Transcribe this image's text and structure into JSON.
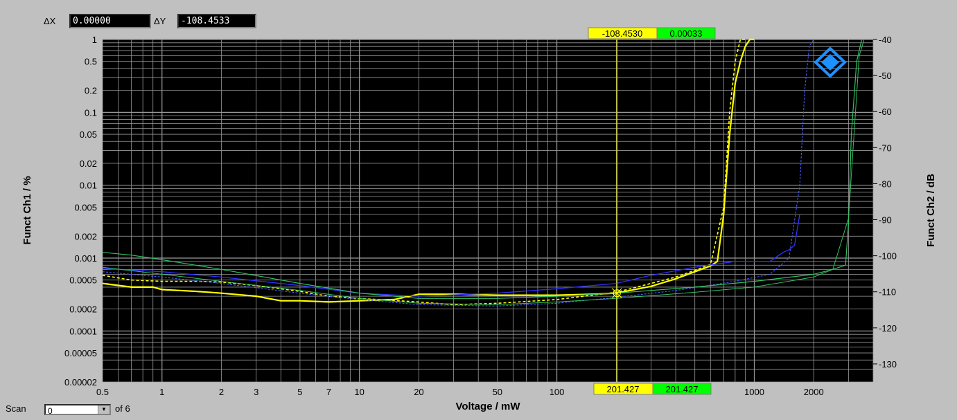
{
  "readouts": {
    "dx_label": "ΔX",
    "dx_value": "0.00000",
    "dy_label": "ΔY",
    "dy_value": "-108.4533"
  },
  "scan": {
    "label": "Scan",
    "value": "0",
    "of_label": "of 6"
  },
  "colors": {
    "background": "#c0c0c0",
    "plot_bg": "#000000",
    "grid": "#9a9a9a",
    "cursor": "#ffff00",
    "cursor_label_yellow": "#ffff00",
    "cursor_label_green": "#00ff00",
    "logo": "#1e90ff"
  },
  "cursor_labels": {
    "top_yellow": "-108.4530",
    "top_green": "0.00033",
    "bottom_yellow": "201.427",
    "bottom_green": "201.427"
  },
  "chart_data": {
    "type": "line",
    "xlabel": "Voltage / mW",
    "ylabel_left": "Funct Ch1 / %",
    "ylabel_right": "Funct Ch2 / dB",
    "x_scale": "log",
    "xlim": [
      0.5,
      4000
    ],
    "y_left_scale": "log",
    "y_left_lim": [
      2e-05,
      1
    ],
    "y_right_lim": [
      -135,
      -40
    ],
    "x_ticks": [
      {
        "v": 0.5,
        "label": "0.5"
      },
      {
        "v": 1,
        "label": "1"
      },
      {
        "v": 2,
        "label": "2"
      },
      {
        "v": 3,
        "label": "3"
      },
      {
        "v": 5,
        "label": "5"
      },
      {
        "v": 7,
        "label": "7"
      },
      {
        "v": 10,
        "label": "10"
      },
      {
        "v": 20,
        "label": "20"
      },
      {
        "v": 50,
        "label": "50"
      },
      {
        "v": 100,
        "label": "100"
      },
      {
        "v": 1000,
        "label": "1000"
      },
      {
        "v": 2000,
        "label": "2000"
      }
    ],
    "y_left_ticks": [
      {
        "v": 1,
        "label": "1"
      },
      {
        "v": 0.5,
        "label": "0.5"
      },
      {
        "v": 0.2,
        "label": "0.2"
      },
      {
        "v": 0.1,
        "label": "0.1"
      },
      {
        "v": 0.05,
        "label": "0.05"
      },
      {
        "v": 0.02,
        "label": "0.02"
      },
      {
        "v": 0.01,
        "label": "0.01"
      },
      {
        "v": 0.005,
        "label": "0.005"
      },
      {
        "v": 0.002,
        "label": "0.002"
      },
      {
        "v": 0.001,
        "label": "0.001"
      },
      {
        "v": 0.0005,
        "label": "0.0005"
      },
      {
        "v": 0.0002,
        "label": "0.0002"
      },
      {
        "v": 0.0001,
        "label": "0.0001"
      },
      {
        "v": 5e-05,
        "label": "0.00005"
      },
      {
        "v": 2e-05,
        "label": "0.00002"
      }
    ],
    "y_right_ticks": [
      {
        "v": -40,
        "label": "-40"
      },
      {
        "v": -50,
        "label": "-50"
      },
      {
        "v": -60,
        "label": "-60"
      },
      {
        "v": -70,
        "label": "-70"
      },
      {
        "v": -80,
        "label": "-80"
      },
      {
        "v": -90,
        "label": "-90"
      },
      {
        "v": -100,
        "label": "-100"
      },
      {
        "v": -110,
        "label": "-110"
      },
      {
        "v": -120,
        "label": "-120"
      },
      {
        "v": -130,
        "label": "-130"
      }
    ],
    "cursor_x": 201.427,
    "cursor_y": 0.00033,
    "series": [
      {
        "color": "#ffff00",
        "width": 2.2,
        "dash": "",
        "x": [
          0.5,
          0.7,
          0.9,
          1.0,
          1.5,
          2,
          3,
          4,
          5,
          7,
          10,
          15,
          20,
          30,
          50,
          70,
          100,
          150,
          200,
          300,
          400,
          500,
          600,
          650,
          700,
          750,
          800,
          850,
          900,
          950,
          1000
        ],
        "y": [
          0.00045,
          0.0004,
          0.0004,
          0.00037,
          0.00035,
          0.00033,
          0.0003,
          0.00026,
          0.00026,
          0.00025,
          0.00026,
          0.00027,
          0.00032,
          0.00032,
          0.00031,
          0.00031,
          0.00031,
          0.00032,
          0.00033,
          0.00041,
          0.00052,
          0.00065,
          0.00078,
          0.0009,
          0.004,
          0.05,
          0.25,
          0.5,
          0.8,
          1.0,
          1.0
        ]
      },
      {
        "color": "#ffff00",
        "width": 1.6,
        "dash": "4,3",
        "x": [
          0.5,
          0.7,
          1.0,
          1.5,
          2,
          3,
          5,
          7,
          10,
          20,
          30,
          50,
          100,
          200,
          300,
          400,
          500,
          600,
          700,
          750,
          800,
          850,
          900
        ],
        "y": [
          0.00058,
          0.0005,
          0.00048,
          0.00048,
          0.00047,
          0.00042,
          0.00035,
          0.0003,
          0.00028,
          0.00025,
          0.00023,
          0.00024,
          0.00027,
          0.00034,
          0.00045,
          0.00055,
          0.00068,
          0.00082,
          0.005,
          0.1,
          0.5,
          1.0,
          1.0
        ]
      },
      {
        "color": "#3030ff",
        "width": 1.3,
        "dash": "",
        "x": [
          0.5,
          1.0,
          2,
          5,
          10,
          20,
          50,
          100,
          200,
          300,
          500,
          800,
          1200,
          1400,
          1500,
          1600,
          1700
        ],
        "y": [
          0.00072,
          0.00065,
          0.00055,
          0.00042,
          0.00033,
          0.0003,
          0.00033,
          0.00038,
          0.00045,
          0.00058,
          0.00075,
          0.0009,
          0.0009,
          0.0012,
          0.0013,
          0.0015,
          0.004
        ]
      },
      {
        "color": "#4a5aff",
        "width": 1.1,
        "dash": "3,2",
        "x": [
          0.5,
          1.0,
          2,
          5,
          10,
          20,
          50,
          100,
          200,
          400,
          800,
          1200,
          1500,
          1700,
          1800,
          1900,
          2000
        ],
        "y": [
          0.00065,
          0.00055,
          0.00045,
          0.00033,
          0.00027,
          0.00023,
          0.00022,
          0.00024,
          0.00029,
          0.00036,
          0.00048,
          0.0006,
          0.001,
          0.01,
          0.2,
          0.8,
          1.0
        ]
      },
      {
        "color": "#30c060",
        "width": 1.2,
        "dash": "",
        "x": [
          0.5,
          0.7,
          1.0,
          2,
          5,
          10,
          20,
          50,
          100,
          200,
          500,
          1000,
          2000,
          2500,
          2900,
          3000,
          3100,
          3300,
          3500
        ],
        "y": [
          0.0012,
          0.0011,
          0.00095,
          0.0007,
          0.00045,
          0.00033,
          0.00028,
          0.00028,
          0.0003,
          0.00033,
          0.0004,
          0.00048,
          0.0006,
          0.0007,
          0.0008,
          0.003,
          0.05,
          0.5,
          1.0
        ]
      },
      {
        "color": "#30c060",
        "width": 1.0,
        "dash": "",
        "x": [
          0.5,
          1.0,
          2,
          5,
          10,
          20,
          50,
          100,
          200,
          500,
          1000,
          2000,
          2500,
          3000,
          3200,
          3400,
          3600
        ],
        "y": [
          0.00075,
          0.0006,
          0.00048,
          0.00036,
          0.00028,
          0.00024,
          0.00023,
          0.00025,
          0.00028,
          0.00034,
          0.0004,
          0.00055,
          0.0007,
          0.0035,
          0.05,
          0.6,
          1.0
        ]
      }
    ]
  }
}
